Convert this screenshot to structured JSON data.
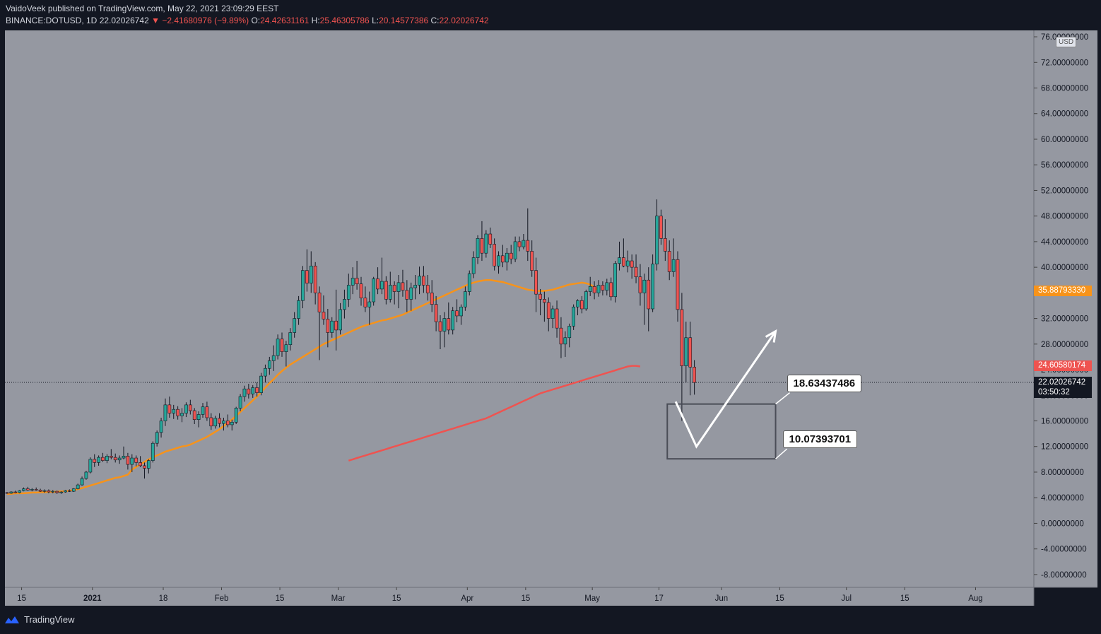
{
  "header": {
    "line1": "VaidoVeek published on TradingView.com, May 22, 2021 23:09:29 EEST",
    "symbol": "BINANCE:DOTUSD, 1D",
    "last": "22.02026742",
    "change": "▼ −2.41680976 (−9.89%)",
    "o_label": "O:",
    "o": "24.42631161",
    "h_label": "H:",
    "h": "25.46305786",
    "l_label": "L:",
    "l": "20.14577386",
    "c_label": "C:",
    "c": "22.02026742"
  },
  "price_axis": {
    "currency": "USD",
    "ticks": [
      "76.00000000",
      "72.00000000",
      "68.00000000",
      "64.00000000",
      "60.00000000",
      "56.00000000",
      "52.00000000",
      "48.00000000",
      "44.00000000",
      "40.00000000",
      "36.00000000",
      "32.00000000",
      "28.00000000",
      "24.00000000",
      "20.00000000",
      "16.00000000",
      "12.00000000",
      "8.00000000",
      "4.00000000",
      "0.00000000",
      "-4.00000000",
      "-8.00000000"
    ]
  },
  "pills": {
    "ma_orange": "35.88793330",
    "ma_red": "24.60580174",
    "last_price": "22.02026742",
    "countdown": "03:50:32"
  },
  "callouts": {
    "upper": "18.63437486",
    "lower": "10.07393701"
  },
  "footer": {
    "brand": "TradingView"
  },
  "colors": {
    "background": "#131722",
    "plot": "#9598a1",
    "up": "#26a69a",
    "down": "#ef5350",
    "ma_orange": "#f7931a",
    "ma_red": "#ef5350"
  },
  "chart_data": {
    "type": "candlestick",
    "symbol": "BINANCE:DOTUSD",
    "interval": "1D",
    "ylim": [
      -10,
      77
    ],
    "x_ticks": [
      {
        "label": "15",
        "date": "2020-12-15"
      },
      {
        "label": "2021",
        "date": "2021-01-01"
      },
      {
        "label": "18",
        "date": "2021-01-18"
      },
      {
        "label": "Feb",
        "date": "2021-02-01"
      },
      {
        "label": "15",
        "date": "2021-02-15"
      },
      {
        "label": "Mar",
        "date": "2021-03-01"
      },
      {
        "label": "15",
        "date": "2021-03-15"
      },
      {
        "label": "Apr",
        "date": "2021-04-01"
      },
      {
        "label": "15",
        "date": "2021-04-15"
      },
      {
        "label": "May",
        "date": "2021-05-01"
      },
      {
        "label": "17",
        "date": "2021-05-17"
      },
      {
        "label": "Jun",
        "date": "2021-06-01"
      },
      {
        "label": "15",
        "date": "2021-06-15"
      },
      {
        "label": "Jul",
        "date": "2021-07-01"
      },
      {
        "label": "15",
        "date": "2021-07-15"
      },
      {
        "label": "Aug",
        "date": "2021-08-01"
      }
    ],
    "x_range": [
      "2020-12-11",
      "2021-08-15"
    ],
    "candles_start": "2020-12-11",
    "candles": [
      [
        4.8,
        4.9,
        4.6,
        4.7
      ],
      [
        4.7,
        5.0,
        4.6,
        4.9
      ],
      [
        4.9,
        5.1,
        4.7,
        4.8
      ],
      [
        4.8,
        5.2,
        4.7,
        5.1
      ],
      [
        5.1,
        5.6,
        5.0,
        5.4
      ],
      [
        5.4,
        5.7,
        5.1,
        5.2
      ],
      [
        5.2,
        5.5,
        5.0,
        5.3
      ],
      [
        5.3,
        5.6,
        5.1,
        5.2
      ],
      [
        5.2,
        5.4,
        4.9,
        5.0
      ],
      [
        5.0,
        5.3,
        4.8,
        5.1
      ],
      [
        5.1,
        5.3,
        4.7,
        4.9
      ],
      [
        4.9,
        5.2,
        4.7,
        5.0
      ],
      [
        5.0,
        5.1,
        4.6,
        4.8
      ],
      [
        4.8,
        5.0,
        4.6,
        4.9
      ],
      [
        4.9,
        5.2,
        4.8,
        5.1
      ],
      [
        5.1,
        5.3,
        4.9,
        5.0
      ],
      [
        5.0,
        5.5,
        4.9,
        5.4
      ],
      [
        5.4,
        6.2,
        5.3,
        6.0
      ],
      [
        6.0,
        7.3,
        5.9,
        7.0
      ],
      [
        7.0,
        8.2,
        6.8,
        8.0
      ],
      [
        8.0,
        10.3,
        7.8,
        10.0
      ],
      [
        10.0,
        10.8,
        8.8,
        9.5
      ],
      [
        9.5,
        10.6,
        9.0,
        10.3
      ],
      [
        10.3,
        11.0,
        9.6,
        9.8
      ],
      [
        9.8,
        10.8,
        9.4,
        10.5
      ],
      [
        10.5,
        11.6,
        10.0,
        10.3
      ],
      [
        10.3,
        10.9,
        9.5,
        9.9
      ],
      [
        9.9,
        10.6,
        9.3,
        10.2
      ],
      [
        10.2,
        12.0,
        10.0,
        10.5
      ],
      [
        10.5,
        11.0,
        8.4,
        9.2
      ],
      [
        9.2,
        10.8,
        8.0,
        10.2
      ],
      [
        10.2,
        10.6,
        8.9,
        9.5
      ],
      [
        9.5,
        10.5,
        8.8,
        9.0
      ],
      [
        9.0,
        9.5,
        7.0,
        8.6
      ],
      [
        8.6,
        10.0,
        7.8,
        9.8
      ],
      [
        9.8,
        12.8,
        9.5,
        12.5
      ],
      [
        12.5,
        14.5,
        12.0,
        14.2
      ],
      [
        14.2,
        16.5,
        13.4,
        16.0
      ],
      [
        16.0,
        19.5,
        15.2,
        18.5
      ],
      [
        18.5,
        19.8,
        16.5,
        17.2
      ],
      [
        17.2,
        18.5,
        16.3,
        17.8
      ],
      [
        17.8,
        18.3,
        16.2,
        16.8
      ],
      [
        16.8,
        18.0,
        15.8,
        17.2
      ],
      [
        17.2,
        18.9,
        16.6,
        18.5
      ],
      [
        18.5,
        19.3,
        17.0,
        17.6
      ],
      [
        17.6,
        18.0,
        15.5,
        16.2
      ],
      [
        16.2,
        17.5,
        15.0,
        17.0
      ],
      [
        17.0,
        18.8,
        16.5,
        18.2
      ],
      [
        18.2,
        19.0,
        16.0,
        16.5
      ],
      [
        16.5,
        17.2,
        14.6,
        15.2
      ],
      [
        15.2,
        16.8,
        14.8,
        16.4
      ],
      [
        16.4,
        17.2,
        15.0,
        15.6
      ],
      [
        15.6,
        16.5,
        14.5,
        16.0
      ],
      [
        16.0,
        17.0,
        15.0,
        15.4
      ],
      [
        15.4,
        16.2,
        14.5,
        15.8
      ],
      [
        15.8,
        18.2,
        15.5,
        18.0
      ],
      [
        18.0,
        20.2,
        17.5,
        19.8
      ],
      [
        19.8,
        21.5,
        19.0,
        21.0
      ],
      [
        21.0,
        21.8,
        19.5,
        20.2
      ],
      [
        20.2,
        21.6,
        19.6,
        21.2
      ],
      [
        21.2,
        22.0,
        19.8,
        20.4
      ],
      [
        20.4,
        23.5,
        20.0,
        23.0
      ],
      [
        23.0,
        24.8,
        22.0,
        24.2
      ],
      [
        24.2,
        26.0,
        23.2,
        25.4
      ],
      [
        25.4,
        27.8,
        23.8,
        26.2
      ],
      [
        26.2,
        29.5,
        25.6,
        28.8
      ],
      [
        28.8,
        29.8,
        26.0,
        26.8
      ],
      [
        26.8,
        28.5,
        24.5,
        27.9
      ],
      [
        27.9,
        30.5,
        27.0,
        29.8
      ],
      [
        29.8,
        33.0,
        29.0,
        32.0
      ],
      [
        32.0,
        35.5,
        31.0,
        34.8
      ],
      [
        34.8,
        40.2,
        33.6,
        39.5
      ],
      [
        39.5,
        42.8,
        36.2,
        37.5
      ],
      [
        37.5,
        42.5,
        36.0,
        40.2
      ],
      [
        40.2,
        40.8,
        34.2,
        36.0
      ],
      [
        36.0,
        37.0,
        25.5,
        33.0
      ],
      [
        33.0,
        35.6,
        31.0,
        31.9
      ],
      [
        31.9,
        33.5,
        27.5,
        29.8
      ],
      [
        29.8,
        32.2,
        29.0,
        31.6
      ],
      [
        31.6,
        36.5,
        27.0,
        30.2
      ],
      [
        30.2,
        34.4,
        29.5,
        33.4
      ],
      [
        33.4,
        36.5,
        32.0,
        35.0
      ],
      [
        35.0,
        39.0,
        33.8,
        37.2
      ],
      [
        37.2,
        40.0,
        35.8,
        38.3
      ],
      [
        38.3,
        41.0,
        36.5,
        37.4
      ],
      [
        37.4,
        38.5,
        34.0,
        35.2
      ],
      [
        35.2,
        37.0,
        33.0,
        33.8
      ],
      [
        33.8,
        36.2,
        31.0,
        34.6
      ],
      [
        34.6,
        38.5,
        34.0,
        38.2
      ],
      [
        38.2,
        40.0,
        35.8,
        36.6
      ],
      [
        36.6,
        41.5,
        35.8,
        37.8
      ],
      [
        37.8,
        38.6,
        34.2,
        35.0
      ],
      [
        35.0,
        39.3,
        34.5,
        37.2
      ],
      [
        37.2,
        37.8,
        34.2,
        36.2
      ],
      [
        36.2,
        38.8,
        33.6,
        37.6
      ],
      [
        37.6,
        39.6,
        35.4,
        36.4
      ],
      [
        36.4,
        38.0,
        33.0,
        35.0
      ],
      [
        35.0,
        37.6,
        33.2,
        36.8
      ],
      [
        36.8,
        38.8,
        35.0,
        37.2
      ],
      [
        37.2,
        40.1,
        35.8,
        38.6
      ],
      [
        38.6,
        40.2,
        36.0,
        37.2
      ],
      [
        37.2,
        38.8,
        34.8,
        36.0
      ],
      [
        36.0,
        38.0,
        33.0,
        34.2
      ],
      [
        34.2,
        35.5,
        30.0,
        31.5
      ],
      [
        31.5,
        32.5,
        27.2,
        30.0
      ],
      [
        30.0,
        33.0,
        27.5,
        32.0
      ],
      [
        32.0,
        34.5,
        29.5,
        30.2
      ],
      [
        30.2,
        33.8,
        29.5,
        33.2
      ],
      [
        33.2,
        35.0,
        31.4,
        32.4
      ],
      [
        32.4,
        34.2,
        31.0,
        33.8
      ],
      [
        33.8,
        37.0,
        33.2,
        36.2
      ],
      [
        36.2,
        39.5,
        35.6,
        39.0
      ],
      [
        39.0,
        42.5,
        38.3,
        41.5
      ],
      [
        41.5,
        45.0,
        40.5,
        44.5
      ],
      [
        44.5,
        47.2,
        41.0,
        42.2
      ],
      [
        42.2,
        45.8,
        41.5,
        45.2
      ],
      [
        45.2,
        46.2,
        43.0,
        43.6
      ],
      [
        43.6,
        44.5,
        39.5,
        40.2
      ],
      [
        40.2,
        42.5,
        39.0,
        41.8
      ],
      [
        41.8,
        43.5,
        40.0,
        40.8
      ],
      [
        40.8,
        43.0,
        39.5,
        42.2
      ],
      [
        42.2,
        43.5,
        40.5,
        41.3
      ],
      [
        41.3,
        44.8,
        40.8,
        44.0
      ],
      [
        44.0,
        44.8,
        42.5,
        43.2
      ],
      [
        43.2,
        45.2,
        42.8,
        44.2
      ],
      [
        44.2,
        49.2,
        41.0,
        42.5
      ],
      [
        42.5,
        44.2,
        38.5,
        39.5
      ],
      [
        39.5,
        41.5,
        33.0,
        35.8
      ],
      [
        35.8,
        36.6,
        32.5,
        35.0
      ],
      [
        35.0,
        36.2,
        31.5,
        34.5
      ],
      [
        34.5,
        35.3,
        30.0,
        32.0
      ],
      [
        32.0,
        34.0,
        30.5,
        33.5
      ],
      [
        33.5,
        34.8,
        29.0,
        30.5
      ],
      [
        30.5,
        32.2,
        25.8,
        28.0
      ],
      [
        28.0,
        30.0,
        26.0,
        29.0
      ],
      [
        29.0,
        31.2,
        27.5,
        30.8
      ],
      [
        30.8,
        34.2,
        30.2,
        33.8
      ],
      [
        33.8,
        35.0,
        32.5,
        34.8
      ],
      [
        34.8,
        35.5,
        32.8,
        33.5
      ],
      [
        33.5,
        36.5,
        33.2,
        36.2
      ],
      [
        36.2,
        38.5,
        35.5,
        37.0
      ],
      [
        37.0,
        37.8,
        35.0,
        36.0
      ],
      [
        36.0,
        38.0,
        35.4,
        37.2
      ],
      [
        37.2,
        37.8,
        35.6,
        36.4
      ],
      [
        36.4,
        38.2,
        35.6,
        37.6
      ],
      [
        37.6,
        38.4,
        34.8,
        35.4
      ],
      [
        35.4,
        41.0,
        34.5,
        40.6
      ],
      [
        40.6,
        44.0,
        39.5,
        41.5
      ],
      [
        41.5,
        44.5,
        40.0,
        40.2
      ],
      [
        40.2,
        42.6,
        39.2,
        41.0
      ],
      [
        41.0,
        42.0,
        38.2,
        40.0
      ],
      [
        40.0,
        42.0,
        37.5,
        38.5
      ],
      [
        38.5,
        40.5,
        34.0,
        36.0
      ],
      [
        36.0,
        39.0,
        31.0,
        38.0
      ],
      [
        38.0,
        40.0,
        30.0,
        33.5
      ],
      [
        33.5,
        42.0,
        33.0,
        40.5
      ],
      [
        40.5,
        50.6,
        39.5,
        48.0
      ],
      [
        48.0,
        49.0,
        43.5,
        44.5
      ],
      [
        44.5,
        47.5,
        41.0,
        42.5
      ],
      [
        42.5,
        44.2,
        38.0,
        39.3
      ],
      [
        39.3,
        44.5,
        38.5,
        41.2
      ],
      [
        41.2,
        42.5,
        31.5,
        33.4
      ],
      [
        33.4,
        36.0,
        16.0,
        24.6
      ],
      [
        24.6,
        31.5,
        22.0,
        29.0
      ],
      [
        29.0,
        31.5,
        20.0,
        24.4
      ],
      [
        24.4,
        25.5,
        20.1,
        22.0
      ]
    ],
    "series": [
      {
        "name": "MA 50",
        "color": "#f7931a",
        "start": "2020-12-11",
        "values": [
          4.6,
          4.6,
          4.7,
          4.7,
          4.7,
          4.75,
          4.8,
          4.8,
          4.85,
          4.85,
          4.9,
          4.9,
          4.95,
          5.0,
          5.0,
          5.1,
          5.2,
          5.35,
          5.5,
          5.7,
          5.9,
          6.1,
          6.3,
          6.5,
          6.7,
          6.9,
          7.1,
          7.2,
          7.4,
          7.6,
          8.4,
          8.8,
          9.2,
          9.6,
          10.0,
          10.3,
          10.6,
          10.9,
          11.2,
          11.4,
          11.6,
          11.8,
          12.0,
          12.1,
          12.3,
          12.6,
          12.9,
          13.2,
          13.5,
          13.9,
          14.3,
          14.7,
          15.2,
          15.7,
          16.2,
          16.8,
          17.4,
          18.0,
          18.6,
          19.2,
          19.8,
          20.5,
          21.2,
          21.9,
          22.5,
          23.2,
          23.8,
          24.3,
          24.8,
          25.2,
          25.6,
          26.0,
          26.4,
          26.8,
          27.2,
          27.6,
          28.0,
          28.3,
          28.6,
          28.9,
          29.2,
          29.5,
          29.8,
          30.1,
          30.4,
          30.7,
          30.9,
          31.1,
          31.3,
          31.5,
          31.7,
          31.8,
          32.0,
          32.2,
          32.4,
          32.6,
          32.9,
          33.2,
          33.5,
          33.8,
          34.1,
          34.4,
          34.7,
          35.0,
          35.3,
          35.6,
          35.9,
          36.2,
          36.5,
          36.8,
          37.1,
          37.4,
          37.6,
          37.8,
          37.9,
          38.0,
          38.0,
          37.9,
          37.8,
          37.7,
          37.5,
          37.3,
          37.1,
          36.9,
          36.7,
          36.5,
          36.4,
          36.3,
          36.3,
          36.3,
          36.4,
          36.5,
          36.7,
          36.9,
          37.1,
          37.3,
          37.4,
          37.5,
          37.6,
          37.5,
          37.3,
          36.9,
          36.4
        ]
      },
      {
        "name": "MA 200",
        "color": "#ef5350",
        "start": "2021-03-03",
        "values": [
          9.8,
          10.0,
          10.2,
          10.4,
          10.6,
          10.8,
          11.0,
          11.2,
          11.4,
          11.6,
          11.8,
          12.0,
          12.2,
          12.4,
          12.6,
          12.8,
          13.0,
          13.2,
          13.4,
          13.6,
          13.8,
          14.0,
          14.2,
          14.4,
          14.6,
          14.8,
          15.0,
          15.2,
          15.4,
          15.6,
          15.8,
          16.0,
          16.2,
          16.4,
          16.7,
          17.0,
          17.3,
          17.6,
          17.9,
          18.2,
          18.5,
          18.8,
          19.1,
          19.4,
          19.7,
          20.0,
          20.3,
          20.5,
          20.7,
          20.9,
          21.1,
          21.3,
          21.5,
          21.7,
          21.9,
          22.1,
          22.3,
          22.5,
          22.7,
          22.9,
          23.1,
          23.3,
          23.5,
          23.7,
          23.9,
          24.1,
          24.3,
          24.5,
          24.6,
          24.6,
          24.5
        ]
      }
    ],
    "annotations": {
      "box": {
        "date_from": "2021-05-19",
        "date_to": "2021-06-14",
        "price_top": 18.63437486,
        "price_bottom": 10.07393701
      },
      "path": [
        {
          "date": "2021-05-21",
          "price": 19.0
        },
        {
          "date": "2021-05-26",
          "price": 12.0
        },
        {
          "date": "2021-06-14",
          "price": 30.0
        }
      ],
      "last_price": 22.02026742
    }
  }
}
